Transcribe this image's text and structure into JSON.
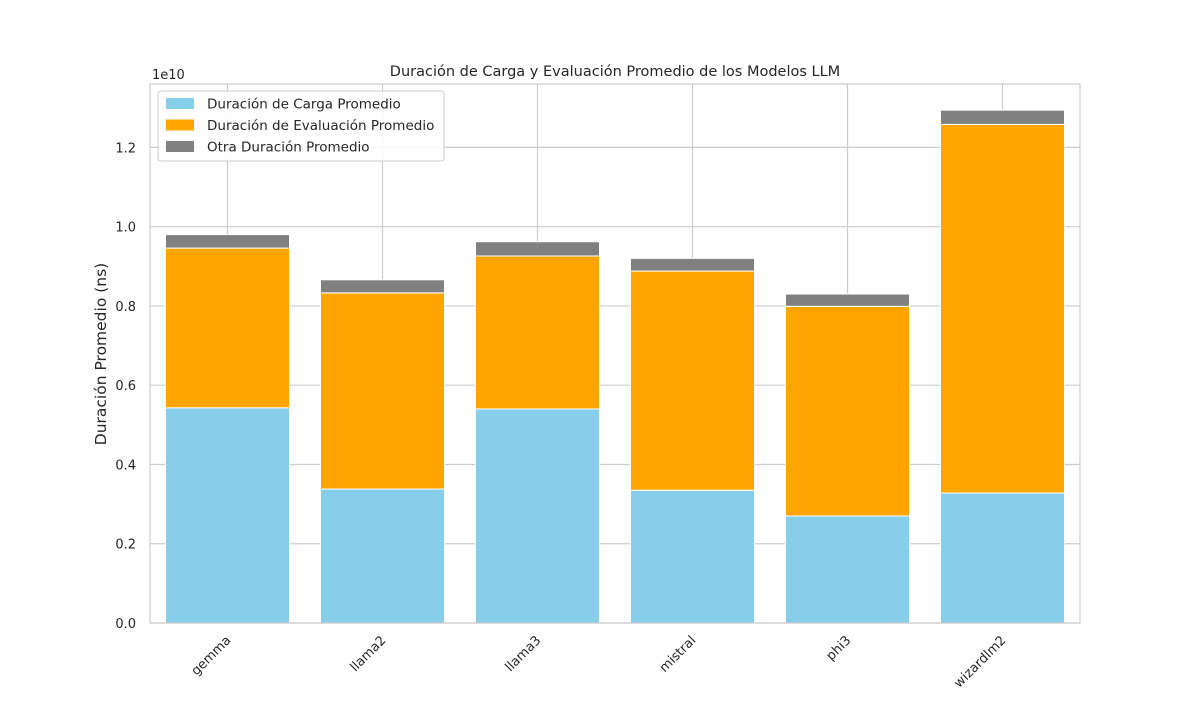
{
  "chart_data": {
    "type": "bar",
    "stacked": true,
    "title": "Duración de Carga y Evaluación Promedio de los Modelos LLM",
    "xlabel": "",
    "ylabel": "Duración Promedio (ns)",
    "offset_label": "1e10",
    "ylim": [
      0,
      1.36
    ],
    "yticks": [
      "0.0",
      "0.2",
      "0.4",
      "0.6",
      "0.8",
      "1.0",
      "1.2"
    ],
    "grid": true,
    "legend_position": "top-left",
    "categories": [
      "gemma",
      "llama2",
      "llama3",
      "mistral",
      "phi3",
      "wizardlm2"
    ],
    "series": [
      {
        "name": "Duración de Carga Promedio",
        "color": "#87ceeb",
        "values": [
          0.543,
          0.338,
          0.54,
          0.335,
          0.27,
          0.328
        ]
      },
      {
        "name": "Duración de Evaluación Promedio",
        "color": "#ffa500",
        "values": [
          0.403,
          0.495,
          0.386,
          0.553,
          0.529,
          0.93
        ]
      },
      {
        "name": "Otra Duración Promedio",
        "color": "#808080",
        "values": [
          0.034,
          0.033,
          0.036,
          0.032,
          0.031,
          0.036
        ]
      }
    ]
  }
}
